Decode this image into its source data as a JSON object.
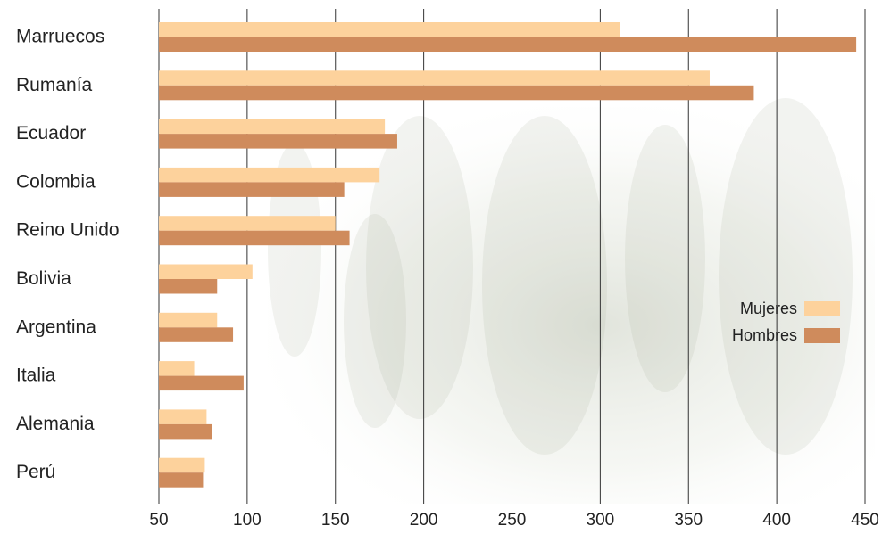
{
  "chart_data": {
    "type": "bar",
    "orientation": "horizontal",
    "title": "",
    "xlabel": "",
    "ylabel": "",
    "categories": [
      "Marruecos",
      "Rumanía",
      "Ecuador",
      "Colombia",
      "Reino Unido",
      "Bolivia",
      "Argentina",
      "Italia",
      "Alemania",
      "Perú"
    ],
    "series": [
      {
        "name": "Mujeres",
        "color": "#fdd29c",
        "values": [
          311,
          362,
          178,
          175,
          150,
          103,
          83,
          70,
          77,
          76
        ]
      },
      {
        "name": "Hombres",
        "color": "#cf8b5c",
        "values": [
          445,
          387,
          185,
          155,
          158,
          83,
          92,
          98,
          80,
          75
        ]
      }
    ],
    "xlim": [
      50,
      450
    ],
    "xticks": [
      "50",
      "100",
      "150",
      "200",
      "250",
      "300",
      "350",
      "400",
      "450"
    ],
    "grid": true,
    "legend_position": "right",
    "background": "photo of people walking"
  }
}
